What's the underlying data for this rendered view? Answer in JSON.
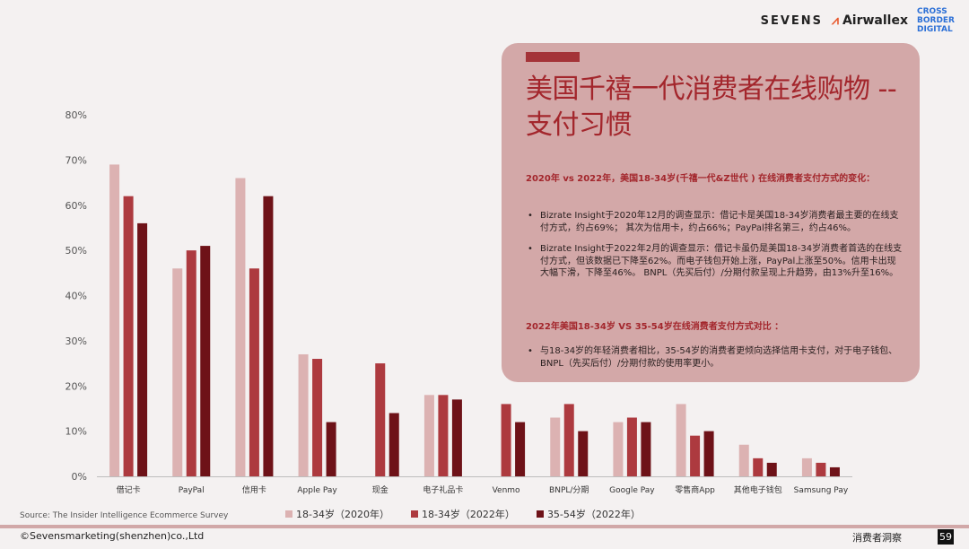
{
  "header": {
    "logo_sevens": "SEVENS",
    "logo_airwallex": "Airwallex",
    "logo_cbd": [
      "CROSS",
      "BORDER",
      "DIGITAL"
    ]
  },
  "panel": {
    "title": "美国千禧一代消费者在线购物 -- 支付习惯",
    "heading1": "2020年 vs 2022年，美国18-34岁(千禧一代&Z世代 ) 在线消费者支付方式的变化：",
    "bullets1": [
      "Bizrate Insight于2020年12月的调查显示：借记卡是美国18-34岁消费者最主要的在线支付方式，约占69%； 其次为信用卡，约占66%；PayPal排名第三，约占46%。",
      "Bizrate Insight于2022年2月的调查显示：借记卡虽仍是美国18-34岁消费者首选的在线支付方式，但该数据已下降至62%。而电子钱包开始上涨，PayPal上涨至50%。信用卡出现大幅下滑，下降至46%。 BNPL（先买后付）/分期付款呈现上升趋势，由13%升至16%。"
    ],
    "heading2": "2022年美国18-34岁 VS 35-54岁在线消费者支付方式对比 ：",
    "bullets2": [
      "与18-34岁的年轻消费者相比，35-54岁的消费者更倾向选择信用卡支付，对于电子钱包、BNPL（先买后付）/分期付款的使用率更小。"
    ]
  },
  "source": "Source:  The Insider Intelligence Ecommerce Survey",
  "footer": {
    "left": "©Sevensmarketing(shenzhen)co.,Ltd",
    "right": "消费者洞察",
    "page": "59"
  },
  "chart_data": {
    "type": "bar",
    "categories": [
      "借记卡",
      "PayPal",
      "信用卡",
      "Apple Pay",
      "现金",
      "电子礼品卡",
      "Venmo",
      "BNPL/分期",
      "Google Pay",
      "零售商App",
      "其他电子钱包",
      "Samsung Pay"
    ],
    "series": [
      {
        "name": "18-34岁（2020年）",
        "color": "#dcb2b2",
        "values": [
          69,
          46,
          66,
          27,
          null,
          18,
          null,
          13,
          12,
          16,
          7,
          4
        ]
      },
      {
        "name": "18-34岁（2022年）",
        "color": "#ad3a3f",
        "values": [
          62,
          50,
          46,
          26,
          25,
          18,
          16,
          16,
          13,
          9,
          4,
          3
        ]
      },
      {
        "name": "35-54岁（2022年）",
        "color": "#6e1218",
        "values": [
          56,
          51,
          62,
          12,
          14,
          17,
          12,
          10,
          12,
          10,
          3,
          2
        ]
      }
    ],
    "y_ticks": [
      "0%",
      "10%",
      "20%",
      "30%",
      "40%",
      "50%",
      "60%",
      "70%",
      "80%"
    ],
    "ylim": [
      0,
      80
    ],
    "grid": false,
    "legend_position": "bottom"
  }
}
